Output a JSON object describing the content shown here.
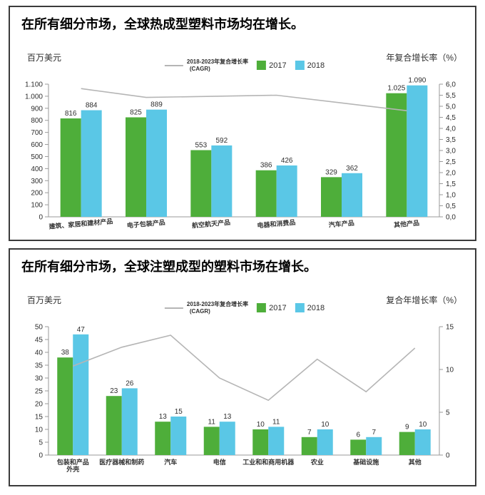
{
  "charts": [
    {
      "title": "在所有细分市场，全球热成型塑料市场均在增长。",
      "unit_label": "百万美元",
      "right_axis_label": "年复合增长率（%）",
      "legend": {
        "line_label_1": "2018-2023年复合增长率",
        "line_label_2": "(CAGR)",
        "bar_series": [
          {
            "label": "2017"
          },
          {
            "label": "2018"
          }
        ]
      },
      "colors": {
        "bar_2017": "#4eae3a",
        "bar_2018": "#5ac7e6",
        "cagr_line": "#b5b5b5",
        "axis": "#9a9a9a"
      },
      "chart_data": {
        "type": "bar",
        "categories": [
          [
            "建筑、家居和建材产品"
          ],
          [
            "电子包装产品"
          ],
          [
            "航空航天产品"
          ],
          [
            "电器和消费品"
          ],
          [
            "汽车产品"
          ],
          [
            "其他产品"
          ]
        ],
        "series": [
          {
            "name": "2017",
            "values": [
              816,
              825,
              553,
              386,
              329,
              1025
            ],
            "labels": [
              "816",
              "825",
              "553",
              "386",
              "329",
              "1.025"
            ]
          },
          {
            "name": "2018",
            "values": [
              884,
              889,
              592,
              426,
              362,
              1090
            ],
            "labels": [
              "884",
              "889",
              "592",
              "426",
              "362",
              "1.090"
            ]
          }
        ],
        "line_series": {
          "name": "2018-2023年复合增长率 (CAGR)",
          "axis": "right",
          "values": [
            5.8,
            5.4,
            5.45,
            5.5,
            5.15,
            4.8
          ]
        },
        "left_axis": {
          "min": 0,
          "max": 1100,
          "step": 100,
          "tick_labels": [
            "0",
            "100",
            "200",
            "300",
            "400",
            "500",
            "600",
            "700",
            "800",
            "900",
            "1.000",
            "1.100"
          ]
        },
        "right_axis": {
          "min": 0,
          "max": 6,
          "step": 0.5,
          "tick_labels": [
            "0,0",
            "0,5",
            "1,0",
            "1,5",
            "2,0",
            "2,5",
            "3,0",
            "3,5",
            "4,0",
            "4,5",
            "5,0",
            "5,5",
            "6,0"
          ]
        },
        "category_tilt_deg": -5,
        "grid": "off",
        "legend_position": "top-center"
      }
    },
    {
      "title": "在所有细分市场，全球注塑成型的塑料市场在增长。",
      "unit_label": "百万美元",
      "right_axis_label": "复合年增长率（%）",
      "legend": {
        "line_label_1": "2018-2023年复合增长率",
        "line_label_2": "(CAGR)",
        "bar_series": [
          {
            "label": "2017"
          },
          {
            "label": "2018"
          }
        ]
      },
      "colors": {
        "bar_2017": "#4eae3a",
        "bar_2018": "#5ac7e6",
        "cagr_line": "#b5b5b5",
        "axis": "#9a9a9a"
      },
      "chart_data": {
        "type": "bar",
        "categories": [
          [
            "包装和产品",
            "外壳"
          ],
          [
            "医疗器械和制药"
          ],
          [
            "汽车"
          ],
          [
            "电信"
          ],
          [
            "工业和和商用机器"
          ],
          [
            "农业"
          ],
          [
            "基础设施"
          ],
          [
            "其他"
          ]
        ],
        "series": [
          {
            "name": "2017",
            "values": [
              38,
              23,
              13,
              11,
              10,
              7,
              6,
              9
            ],
            "labels": [
              "38",
              "23",
              "13",
              "11",
              "10",
              "7",
              "6",
              "9"
            ]
          },
          {
            "name": "2018",
            "values": [
              47,
              26,
              15,
              13,
              11,
              10,
              7,
              10
            ],
            "labels": [
              "47",
              "26",
              "15",
              "13",
              "11",
              "10",
              "7",
              "10"
            ]
          }
        ],
        "line_series": {
          "name": "2018-2023年复合增长率 (CAGR)",
          "axis": "right",
          "values": [
            10.4,
            12.6,
            14,
            9,
            6.4,
            11.2,
            7.4,
            12.5
          ]
        },
        "left_axis": {
          "min": 0,
          "max": 50,
          "step": 5,
          "tick_labels": [
            "0",
            "5",
            "10",
            "15",
            "20",
            "25",
            "30",
            "35",
            "40",
            "45",
            "50"
          ]
        },
        "right_axis": {
          "min": 0,
          "max": 15,
          "step": 5,
          "tick_labels": [
            "0",
            "5",
            "10",
            "15"
          ]
        },
        "category_tilt_deg": 0,
        "grid": "off",
        "legend_position": "top-center"
      }
    }
  ]
}
